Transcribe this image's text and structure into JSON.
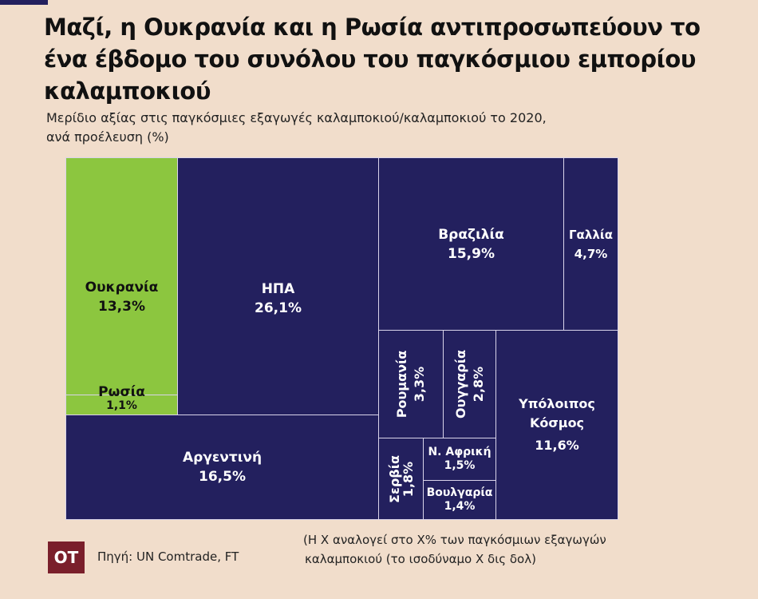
{
  "title": "Μαζί, η Ουκρανία και η Ρωσία αντιπροσωπεύουν το ένα έβδομο του συνόλου του παγκόσμιου εμπορίου καλαμποκιού",
  "subtitle_line1": "Μερίδιο αξίας στις παγκόσμιες εξαγωγές καλαμποκιού/καλαμποκιού το 2020,",
  "subtitle_line2": "ανά προέλευση (%)",
  "logo": "OT",
  "source": "Πηγή: UN Comtrade, FT",
  "note_line1": "(Η Χ αναλογεί στο Χ% των παγκόσμιων εξαγωγών",
  "note_line2": "καλαμποκιού (το ισοδύναμο Χ δις δολ)",
  "colors": {
    "highlight": "#8cc63f",
    "default": "#23205e"
  },
  "chart_data": {
    "type": "treemap",
    "unit": "%",
    "items": [
      {
        "name": "Ουκρανία",
        "value": 13.3,
        "label": "13,3%",
        "highlight": true
      },
      {
        "name": "Ρωσία",
        "value": 1.1,
        "label": "1,1%",
        "highlight": true
      },
      {
        "name": "ΗΠΑ",
        "value": 26.1,
        "label": "26,1%"
      },
      {
        "name": "Αργεντινή",
        "value": 16.5,
        "label": "16,5%"
      },
      {
        "name": "Βραζιλία",
        "value": 15.9,
        "label": "15,9%"
      },
      {
        "name": "Γαλλία",
        "value": 4.7,
        "label": "4,7%"
      },
      {
        "name": "Ρουμανία",
        "value": 3.3,
        "label": "3,3%"
      },
      {
        "name": "Ουγγαρία",
        "value": 2.8,
        "label": "2,8%"
      },
      {
        "name": "Υπόλοιπος Κόσμος",
        "value": 11.6,
        "label": "11,6%"
      },
      {
        "name": "Σερβία",
        "value": 1.8,
        "label": "1,8%"
      },
      {
        "name": "Ν. Αφρική",
        "value": 1.5,
        "label": "1,5%"
      },
      {
        "name": "Βουλγαρία",
        "value": 1.4,
        "label": "1,4%"
      }
    ]
  }
}
